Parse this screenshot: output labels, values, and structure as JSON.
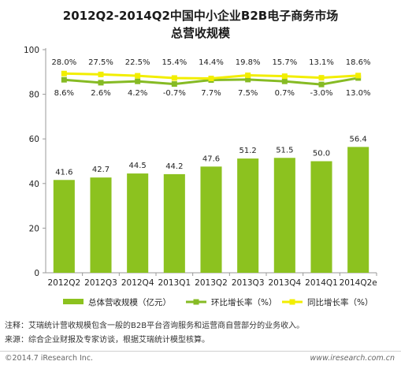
{
  "title": "2012Q2-2014Q2中国中小企业B2B电子商务市场",
  "subtitle": "总营收规模",
  "chart_data": {
    "type": "bar",
    "categories": [
      "2012Q2",
      "2012Q3",
      "2012Q4",
      "2013Q1",
      "2013Q2",
      "2013Q3",
      "2013Q4",
      "2014Q1",
      "2014Q2e"
    ],
    "y_ticks": [
      "0",
      "20",
      "40",
      "60",
      "80",
      "100"
    ],
    "ylim": [
      0,
      100
    ],
    "series": [
      {
        "name": "总体营收规模（亿元）",
        "kind": "bar",
        "color": "#8cc21f",
        "values": [
          41.6,
          42.7,
          44.5,
          44.2,
          47.6,
          51.2,
          51.5,
          50.0,
          56.4
        ],
        "labels": [
          "41.6",
          "42.7",
          "44.5",
          "44.2",
          "47.6",
          "51.2",
          "51.5",
          "50.0",
          "56.4"
        ]
      },
      {
        "name": "环比增长率（%）",
        "kind": "line",
        "color": "#86bb24",
        "plot_y": [
          86.5,
          85.2,
          85.8,
          84.6,
          86.4,
          86.6,
          85.8,
          84.4,
          87.3
        ],
        "labels": [
          "8.6%",
          "2.6%",
          "4.2%",
          "-0.7%",
          "7.7%",
          "7.5%",
          "0.7%",
          "-3.0%",
          "13.0%"
        ]
      },
      {
        "name": "同比增长率（%）",
        "kind": "line",
        "color": "#f2ee00",
        "plot_y": [
          89.3,
          88.9,
          88.3,
          87.3,
          87.1,
          88.5,
          88.1,
          87.4,
          88.4
        ],
        "labels": [
          "28.0%",
          "27.5%",
          "22.5%",
          "15.4%",
          "14.4%",
          "19.8%",
          "15.7%",
          "13.1%",
          "18.6%"
        ]
      }
    ],
    "grid": false,
    "legend": "bottom"
  },
  "notes": {
    "note1": "注释：艾瑞统计营收规模包含一般的B2B平台咨询服务和运营商自营部分的业务收入。",
    "note2": "来源：综合企业财报及专家访谈，根据艾瑞统计模型核算。"
  },
  "footer": {
    "copyright": "©2014.7 iResearch Inc.",
    "website": "www.iresearch.com.cn"
  }
}
